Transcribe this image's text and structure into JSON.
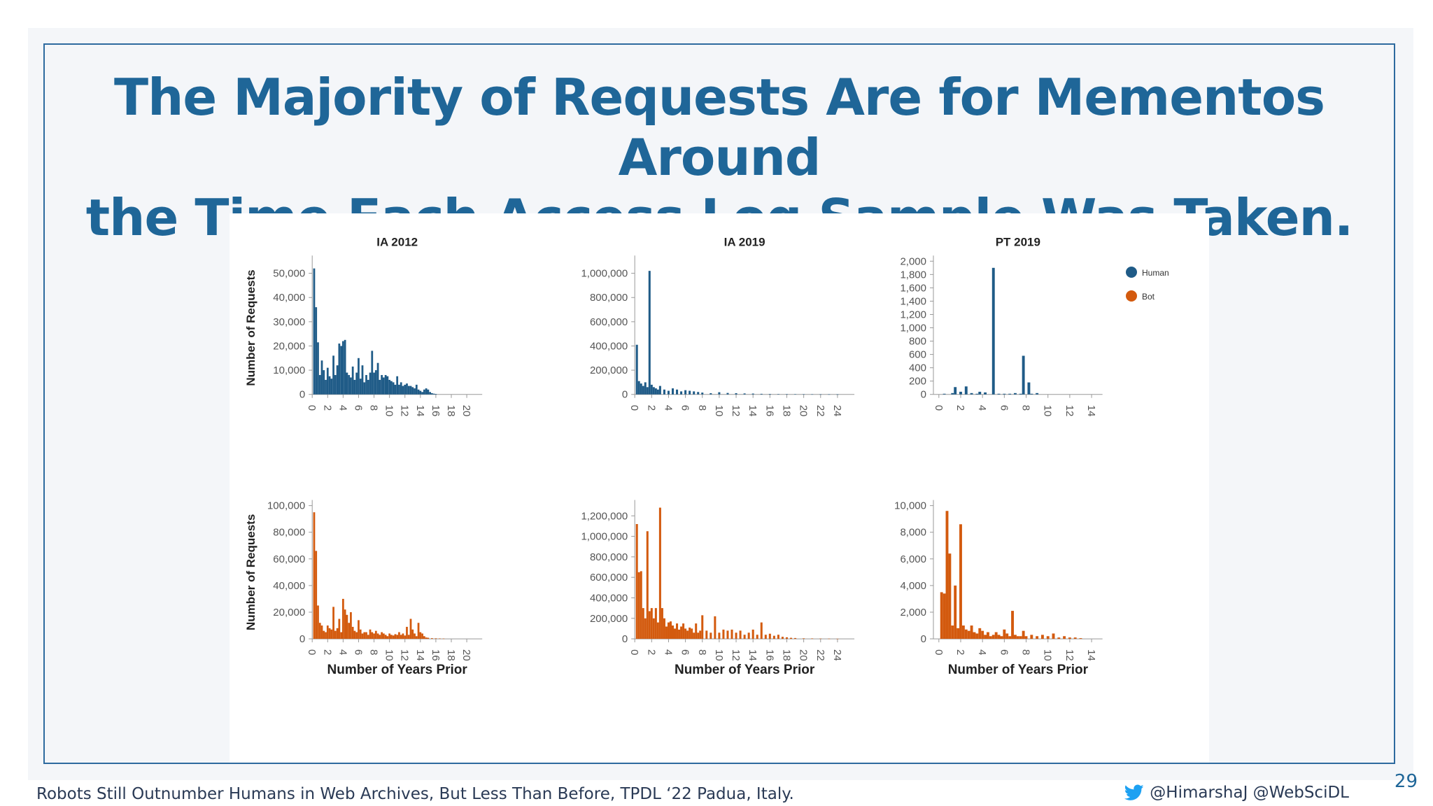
{
  "slide": {
    "title_line1": "The Majority of Requests Are for Mementos Around",
    "title_line2": "the Time Each Access Log Sample Was Taken.",
    "footer_text": "Robots Still Outnumber Humans in Web Archives, But Less Than Before, TPDL ‘22 Padua, Italy.",
    "handles": "@HimarshaJ @WebSciDL",
    "page_number": "29"
  },
  "colors": {
    "human": "#1f5b87",
    "bot": "#d35a0e",
    "title": "#1f6698"
  },
  "icons": {
    "social": "twitter-bird-icon"
  },
  "legend": {
    "human": "Human",
    "bot": "Bot"
  },
  "chart_data": [
    {
      "id": "ia2012-human",
      "type": "bar",
      "title": "IA 2012",
      "series": "Human",
      "ylabel": "Number of Requests",
      "xlabel": "",
      "ylim": [
        0,
        55000
      ],
      "yticks": [
        0,
        10000,
        20000,
        30000,
        40000,
        50000
      ],
      "xlim": [
        0,
        22
      ],
      "xticks": [
        0,
        2,
        4,
        6,
        8,
        10,
        12,
        14,
        16,
        18,
        20
      ],
      "x": [
        0.25,
        0.5,
        0.75,
        1,
        1.25,
        1.5,
        1.75,
        2,
        2.25,
        2.5,
        2.75,
        3,
        3.25,
        3.5,
        3.75,
        4,
        4.25,
        4.5,
        4.75,
        5,
        5.25,
        5.5,
        5.75,
        6,
        6.25,
        6.5,
        6.75,
        7,
        7.25,
        7.5,
        7.75,
        8,
        8.25,
        8.5,
        8.75,
        9,
        9.25,
        9.5,
        9.75,
        10,
        10.25,
        10.5,
        10.75,
        11,
        11.25,
        11.5,
        11.75,
        12,
        12.25,
        12.5,
        12.75,
        13,
        13.25,
        13.5,
        13.75,
        14,
        14.25,
        14.5,
        14.75,
        15,
        15.25,
        15.5,
        15.75,
        16
      ],
      "values": [
        52000,
        36000,
        21500,
        8000,
        14000,
        10000,
        6000,
        11000,
        7500,
        6500,
        16000,
        8000,
        12000,
        21000,
        20000,
        22000,
        22500,
        9000,
        8000,
        7000,
        11500,
        6000,
        9000,
        15000,
        6500,
        12000,
        5000,
        8000,
        6000,
        9000,
        18000,
        9000,
        10000,
        13000,
        6000,
        8000,
        7000,
        8000,
        7500,
        6000,
        5500,
        5000,
        4000,
        7500,
        4000,
        5000,
        3500,
        4000,
        4500,
        3500,
        3500,
        3000,
        2500,
        4000,
        2000,
        1500,
        1000,
        2000,
        2500,
        2000,
        1000,
        500,
        300,
        200
      ]
    },
    {
      "id": "ia2019-human",
      "type": "bar",
      "title": "IA 2019",
      "series": "Human",
      "ylabel": "",
      "xlabel": "",
      "ylim": [
        0,
        1100000
      ],
      "yticks": [
        0,
        200000,
        400000,
        600000,
        800000,
        1000000
      ],
      "xlim": [
        0,
        26
      ],
      "xticks": [
        0,
        2,
        4,
        6,
        8,
        10,
        12,
        14,
        16,
        18,
        20,
        22,
        24
      ],
      "x": [
        0.25,
        0.5,
        0.75,
        1,
        1.25,
        1.5,
        1.75,
        2,
        2.25,
        2.5,
        2.75,
        3,
        3.5,
        4,
        4.5,
        5,
        5.5,
        6,
        6.5,
        7,
        7.5,
        8,
        9,
        10,
        11,
        12,
        13,
        14,
        15,
        16,
        17,
        18,
        19,
        20,
        21,
        22,
        23,
        24
      ],
      "values": [
        410000,
        110000,
        90000,
        70000,
        100000,
        60000,
        1020000,
        80000,
        60000,
        50000,
        40000,
        70000,
        40000,
        30000,
        50000,
        40000,
        25000,
        35000,
        30000,
        25000,
        20000,
        15000,
        10000,
        18000,
        12000,
        10000,
        8000,
        7000,
        5000,
        4000,
        3000,
        2500,
        2000,
        1500,
        1000,
        800,
        500,
        300
      ]
    },
    {
      "id": "pt2019-human",
      "type": "bar",
      "title": "PT 2019",
      "series": "Human",
      "ylabel": "",
      "xlabel": "",
      "ylim": [
        0,
        2000
      ],
      "yticks": [
        0,
        200,
        400,
        600,
        800,
        1000,
        1200,
        1400,
        1600,
        1800,
        2000
      ],
      "xlim": [
        -0.5,
        15
      ],
      "xticks": [
        0,
        2,
        4,
        6,
        8,
        10,
        12,
        14
      ],
      "x": [
        0.5,
        1.25,
        1.5,
        2,
        2.5,
        3,
        3.5,
        3.75,
        4.25,
        5,
        5.5,
        6,
        6.5,
        7,
        7.5,
        7.75,
        8.25,
        8.5,
        9
      ],
      "values": [
        10,
        20,
        110,
        40,
        120,
        20,
        10,
        40,
        30,
        1900,
        10,
        10,
        10,
        20,
        10,
        580,
        180,
        10,
        20
      ]
    },
    {
      "id": "ia2012-bot",
      "type": "bar",
      "title": "",
      "series": "Bot",
      "ylabel": "Number of Requests",
      "xlabel": "Number of Years Prior",
      "ylim": [
        0,
        100000
      ],
      "yticks": [
        0,
        20000,
        40000,
        60000,
        80000,
        100000
      ],
      "xlim": [
        0,
        22
      ],
      "xticks": [
        0,
        2,
        4,
        6,
        8,
        10,
        12,
        14,
        16,
        18,
        20
      ],
      "x": [
        0.25,
        0.5,
        0.75,
        1,
        1.25,
        1.5,
        1.75,
        2,
        2.25,
        2.5,
        2.75,
        3,
        3.25,
        3.5,
        3.75,
        4,
        4.25,
        4.5,
        4.75,
        5,
        5.25,
        5.5,
        5.75,
        6,
        6.25,
        6.5,
        6.75,
        7,
        7.25,
        7.5,
        7.75,
        8,
        8.25,
        8.5,
        8.75,
        9,
        9.25,
        9.5,
        9.75,
        10,
        10.25,
        10.5,
        10.75,
        11,
        11.25,
        11.5,
        11.75,
        12,
        12.25,
        12.5,
        12.75,
        13,
        13.25,
        13.5,
        13.75,
        14,
        14.25,
        14.5,
        14.75,
        15,
        15.5,
        16,
        16.5,
        17
      ],
      "values": [
        95000,
        66000,
        25000,
        12000,
        10000,
        6000,
        5000,
        10000,
        8000,
        7000,
        24000,
        6000,
        8000,
        15000,
        5000,
        30000,
        22000,
        18000,
        12000,
        20000,
        9000,
        6000,
        5000,
        14000,
        7000,
        4000,
        5000,
        5000,
        3000,
        7000,
        5000,
        4000,
        6000,
        4000,
        3000,
        5000,
        4000,
        3000,
        2000,
        4000,
        3000,
        2500,
        3500,
        3000,
        5000,
        3000,
        4000,
        2500,
        9000,
        3000,
        15000,
        7000,
        4000,
        2000,
        12000,
        5000,
        4000,
        2000,
        1000,
        800,
        500,
        400,
        300,
        200
      ]
    },
    {
      "id": "ia2019-bot",
      "type": "bar",
      "title": "",
      "series": "Bot",
      "ylabel": "",
      "xlabel": "Number of Years Prior",
      "ylim": [
        0,
        1300000
      ],
      "yticks": [
        0,
        200000,
        400000,
        600000,
        800000,
        1000000,
        1200000
      ],
      "xlim": [
        0,
        26
      ],
      "xticks": [
        0,
        2,
        4,
        6,
        8,
        10,
        12,
        14,
        16,
        18,
        20,
        22,
        24
      ],
      "x": [
        0.25,
        0.5,
        0.75,
        1,
        1.25,
        1.5,
        1.75,
        2,
        2.25,
        2.5,
        2.75,
        3,
        3.25,
        3.5,
        3.75,
        4,
        4.25,
        4.5,
        4.75,
        5,
        5.25,
        5.5,
        5.75,
        6,
        6.25,
        6.5,
        6.75,
        7,
        7.25,
        7.5,
        7.75,
        8,
        8.5,
        9,
        9.5,
        10,
        10.5,
        11,
        11.5,
        12,
        12.5,
        13,
        13.5,
        14,
        14.5,
        15,
        15.5,
        16,
        16.5,
        17,
        17.5,
        18,
        18.5,
        19,
        20,
        21,
        22,
        23,
        24
      ],
      "values": [
        1120000,
        650000,
        660000,
        300000,
        200000,
        1050000,
        270000,
        300000,
        200000,
        300000,
        160000,
        1280000,
        300000,
        200000,
        120000,
        160000,
        170000,
        130000,
        100000,
        150000,
        90000,
        120000,
        150000,
        100000,
        80000,
        110000,
        100000,
        60000,
        150000,
        60000,
        80000,
        230000,
        80000,
        60000,
        220000,
        60000,
        90000,
        80000,
        90000,
        60000,
        80000,
        40000,
        60000,
        90000,
        40000,
        160000,
        40000,
        50000,
        30000,
        40000,
        20000,
        15000,
        10000,
        8000,
        5000,
        4000,
        3000,
        2000,
        1000
      ]
    },
    {
      "id": "pt2019-bot",
      "type": "bar",
      "title": "",
      "series": "Bot",
      "ylabel": "",
      "xlabel": "Number of Years Prior",
      "ylim": [
        0,
        10000
      ],
      "yticks": [
        0,
        2000,
        4000,
        6000,
        8000,
        10000
      ],
      "xlim": [
        -0.5,
        15
      ],
      "xticks": [
        0,
        2,
        4,
        6,
        8,
        10,
        12,
        14
      ],
      "x": [
        0.25,
        0.5,
        0.75,
        1,
        1.25,
        1.5,
        1.75,
        2,
        2.25,
        2.5,
        2.75,
        3,
        3.25,
        3.5,
        3.75,
        4,
        4.25,
        4.5,
        4.75,
        5,
        5.25,
        5.5,
        5.75,
        6,
        6.25,
        6.5,
        6.75,
        7,
        7.25,
        7.5,
        7.75,
        8,
        8.5,
        9,
        9.5,
        10,
        10.5,
        11,
        11.5,
        12,
        12.5,
        13
      ],
      "values": [
        3500,
        3400,
        9600,
        6400,
        1000,
        4000,
        800,
        8600,
        1000,
        700,
        600,
        1000,
        500,
        400,
        800,
        600,
        300,
        500,
        200,
        300,
        500,
        300,
        200,
        700,
        400,
        200,
        2100,
        300,
        200,
        200,
        600,
        200,
        300,
        200,
        300,
        200,
        400,
        100,
        200,
        100,
        100,
        50
      ]
    }
  ]
}
